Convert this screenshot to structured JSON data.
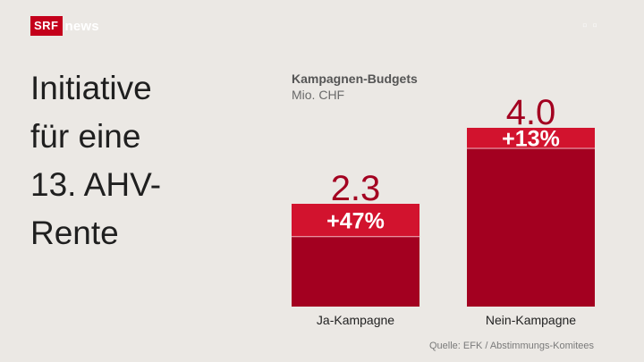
{
  "brand": {
    "logo_box": "SRF",
    "logo_text": "news",
    "accent": "#c4001b"
  },
  "headline": {
    "lines": [
      "Initiative",
      "für eine",
      "13. AHV-",
      "Rente"
    ]
  },
  "chart_data": {
    "type": "bar",
    "title": "Kampagnen-Budgets",
    "ylabel": "Mio. CHF",
    "xlabel": "",
    "categories": [
      "Ja-Kampagne",
      "Nein-Kampagne"
    ],
    "values": [
      2.3,
      4.0
    ],
    "value_labels": [
      "2.3",
      "4.0"
    ],
    "increase_labels": [
      "+47%",
      "+13%"
    ],
    "increase_pct": [
      47,
      13
    ],
    "ylim": [
      0,
      4.0
    ],
    "grid": false,
    "legend": "none",
    "colors": {
      "bar": "#a30020",
      "increase": "#d2132e",
      "value_text": "#a30020"
    }
  },
  "source": "Quelle: EFK / Abstimmungs-Komitees"
}
